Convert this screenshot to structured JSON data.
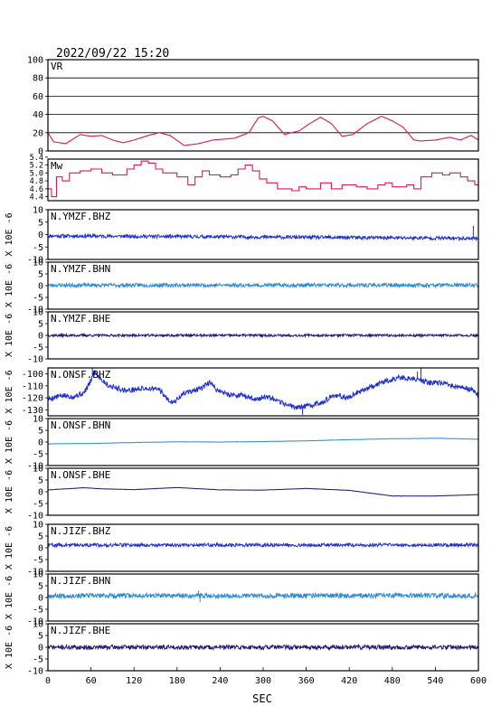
{
  "header": {
    "timestamp": "2022/09/22 15:20"
  },
  "colors": {
    "vr": "#d81b4a",
    "mw": "#d81b4a",
    "bhz": "#1f2fd0",
    "bhn": "#2e8bd8",
    "bhe": "#1a1a70",
    "grid": "#000000"
  },
  "chart_data": {
    "type": "line",
    "x_label": "SEC",
    "x_range": [
      0,
      600
    ],
    "x_ticks": [
      0,
      60,
      120,
      180,
      240,
      300,
      360,
      420,
      480,
      540,
      600
    ],
    "panels": [
      {
        "key": "vr",
        "title": "VR",
        "ylabel": "",
        "ylim": [
          0,
          100
        ],
        "ticks": [
          0,
          20,
          40,
          60,
          80,
          100
        ],
        "grid": true,
        "color_key": "vr",
        "mode": "line",
        "points": [
          [
            0,
            20
          ],
          [
            8,
            10
          ],
          [
            25,
            8
          ],
          [
            45,
            18
          ],
          [
            60,
            16
          ],
          [
            75,
            17
          ],
          [
            90,
            12
          ],
          [
            105,
            9
          ],
          [
            120,
            12
          ],
          [
            140,
            17
          ],
          [
            155,
            20
          ],
          [
            170,
            17
          ],
          [
            190,
            6
          ],
          [
            210,
            8
          ],
          [
            230,
            12
          ],
          [
            260,
            14
          ],
          [
            280,
            20
          ],
          [
            293,
            36
          ],
          [
            300,
            38
          ],
          [
            313,
            33
          ],
          [
            330,
            18
          ],
          [
            350,
            22
          ],
          [
            365,
            30
          ],
          [
            380,
            37
          ],
          [
            395,
            30
          ],
          [
            410,
            16
          ],
          [
            425,
            18
          ],
          [
            445,
            30
          ],
          [
            465,
            38
          ],
          [
            480,
            33
          ],
          [
            495,
            26
          ],
          [
            510,
            12
          ],
          [
            520,
            11
          ],
          [
            540,
            12
          ],
          [
            560,
            15
          ],
          [
            575,
            12
          ],
          [
            590,
            17
          ],
          [
            600,
            12
          ]
        ]
      },
      {
        "key": "mw",
        "title": "Mw",
        "ylabel": "",
        "ylim": [
          4.3,
          5.35
        ],
        "ticks": [
          4.4,
          4.6,
          4.8,
          5.0,
          5.2,
          5.4
        ],
        "tick_labels": [
          "4.4",
          "4.6",
          "4.8",
          "5.0",
          "5.2",
          "5.4"
        ],
        "grid": false,
        "color_key": "mw",
        "mode": "step",
        "points": [
          [
            0,
            4.6
          ],
          [
            5,
            4.4
          ],
          [
            12,
            4.9
          ],
          [
            20,
            4.8
          ],
          [
            30,
            5.0
          ],
          [
            45,
            5.05
          ],
          [
            60,
            5.1
          ],
          [
            75,
            5.0
          ],
          [
            90,
            4.95
          ],
          [
            110,
            5.1
          ],
          [
            120,
            5.2
          ],
          [
            130,
            5.3
          ],
          [
            140,
            5.25
          ],
          [
            150,
            5.1
          ],
          [
            160,
            5.0
          ],
          [
            180,
            4.9
          ],
          [
            195,
            4.7
          ],
          [
            205,
            4.9
          ],
          [
            215,
            5.05
          ],
          [
            225,
            4.95
          ],
          [
            240,
            4.9
          ],
          [
            255,
            4.95
          ],
          [
            265,
            5.1
          ],
          [
            275,
            5.2
          ],
          [
            285,
            5.05
          ],
          [
            295,
            4.85
          ],
          [
            305,
            4.75
          ],
          [
            320,
            4.6
          ],
          [
            340,
            4.55
          ],
          [
            350,
            4.65
          ],
          [
            360,
            4.6
          ],
          [
            380,
            4.75
          ],
          [
            395,
            4.6
          ],
          [
            410,
            4.7
          ],
          [
            430,
            4.65
          ],
          [
            445,
            4.6
          ],
          [
            460,
            4.7
          ],
          [
            470,
            4.75
          ],
          [
            480,
            4.65
          ],
          [
            500,
            4.7
          ],
          [
            510,
            4.6
          ],
          [
            520,
            4.9
          ],
          [
            535,
            5.0
          ],
          [
            550,
            4.95
          ],
          [
            560,
            5.0
          ],
          [
            575,
            4.9
          ],
          [
            585,
            4.8
          ],
          [
            595,
            4.7
          ],
          [
            600,
            4.65
          ]
        ]
      },
      {
        "key": "ymzf_bhz",
        "title": "N.YMZF.BHZ",
        "ylabel": "X 10E -6",
        "ylim": [
          -10,
          10
        ],
        "ticks": [
          -10,
          -5,
          0,
          5,
          10
        ],
        "color_key": "bhz",
        "mode": "noise",
        "base": [
          [
            0,
            -0.5
          ],
          [
            600,
            -1.5
          ]
        ],
        "amp": 0.7,
        "seed": 11,
        "spikes": [
          [
            593,
            3.5
          ],
          [
            597,
            -2.5
          ]
        ]
      },
      {
        "key": "ymzf_bhn",
        "title": "N.YMZF.BHN",
        "ylabel": "X 10E -6",
        "ylim": [
          -10,
          10
        ],
        "ticks": [
          -10,
          -5,
          0,
          5,
          10
        ],
        "color_key": "bhn",
        "mode": "noise",
        "base": [
          [
            0,
            0.2
          ],
          [
            600,
            0.2
          ]
        ],
        "amp": 0.8,
        "seed": 23,
        "spikes": []
      },
      {
        "key": "ymzf_bhe",
        "title": "N.YMZF.BHE",
        "ylabel": "X 10E -6",
        "ylim": [
          -10,
          10
        ],
        "ticks": [
          -10,
          -5,
          0,
          5,
          10
        ],
        "color_key": "bhe",
        "mode": "noise",
        "base": [
          [
            0,
            0
          ],
          [
            600,
            0
          ]
        ],
        "amp": 0.5,
        "seed": 37,
        "spikes": []
      },
      {
        "key": "onsf_bhz",
        "title": "N.ONSF.BHZ",
        "ylabel": "X 10E -6",
        "ylim": [
          -135,
          -95
        ],
        "ticks": [
          -130,
          -120,
          -110,
          -100
        ],
        "color_key": "bhz",
        "mode": "noise",
        "amp": 2.2,
        "seed": 5,
        "base": [
          [
            0,
            -121
          ],
          [
            20,
            -118
          ],
          [
            35,
            -119
          ],
          [
            50,
            -116
          ],
          [
            58,
            -108
          ],
          [
            65,
            -98
          ],
          [
            75,
            -105
          ],
          [
            85,
            -110
          ],
          [
            110,
            -114
          ],
          [
            135,
            -112
          ],
          [
            155,
            -113
          ],
          [
            165,
            -120
          ],
          [
            175,
            -124
          ],
          [
            190,
            -116
          ],
          [
            215,
            -112
          ],
          [
            225,
            -107
          ],
          [
            235,
            -113
          ],
          [
            250,
            -117
          ],
          [
            270,
            -118
          ],
          [
            290,
            -121
          ],
          [
            305,
            -119
          ],
          [
            320,
            -123
          ],
          [
            345,
            -128
          ],
          [
            360,
            -127
          ],
          [
            380,
            -124
          ],
          [
            400,
            -118
          ],
          [
            420,
            -120
          ],
          [
            432,
            -115
          ],
          [
            445,
            -112
          ],
          [
            465,
            -107
          ],
          [
            490,
            -103
          ],
          [
            510,
            -104
          ],
          [
            530,
            -107
          ],
          [
            550,
            -108
          ],
          [
            570,
            -111
          ],
          [
            590,
            -113
          ],
          [
            600,
            -118
          ]
        ],
        "spikes": [
          [
            62,
            -95
          ],
          [
            520,
            -94
          ],
          [
            515,
            -98
          ],
          [
            355,
            -134
          ]
        ]
      },
      {
        "key": "onsf_bhn",
        "title": "N.ONSF.BHN",
        "ylabel": "X 10E -6",
        "ylim": [
          -10,
          10
        ],
        "ticks": [
          -10,
          -5,
          0,
          5,
          10
        ],
        "color_key": "bhn",
        "mode": "noise",
        "amp": 0.06,
        "seed": 41,
        "spikes": [],
        "base": [
          [
            0,
            -0.8
          ],
          [
            60,
            -0.6
          ],
          [
            120,
            -0.2
          ],
          [
            180,
            0.1
          ],
          [
            240,
            0.0
          ],
          [
            300,
            0.2
          ],
          [
            360,
            0.5
          ],
          [
            420,
            1.0
          ],
          [
            480,
            1.4
          ],
          [
            540,
            1.6
          ],
          [
            600,
            1.2
          ]
        ]
      },
      {
        "key": "onsf_bhe",
        "title": "N.ONSF.BHE",
        "ylabel": "X 10E -6",
        "ylim": [
          -10,
          10
        ],
        "ticks": [
          -10,
          -5,
          0,
          5,
          10
        ],
        "color_key": "bhe",
        "mode": "noise",
        "amp": 0.06,
        "seed": 43,
        "spikes": [],
        "base": [
          [
            0,
            0.8
          ],
          [
            50,
            1.7
          ],
          [
            80,
            1.2
          ],
          [
            120,
            0.9
          ],
          [
            180,
            1.8
          ],
          [
            240,
            0.8
          ],
          [
            300,
            0.7
          ],
          [
            360,
            1.4
          ],
          [
            420,
            0.6
          ],
          [
            455,
            -0.8
          ],
          [
            480,
            -1.8
          ],
          [
            540,
            -1.8
          ],
          [
            600,
            -1.2
          ]
        ]
      },
      {
        "key": "jizf_bhz",
        "title": "N.JIZF.BHZ",
        "ylabel": "X 10E -6",
        "ylim": [
          -10,
          10
        ],
        "ticks": [
          -10,
          -5,
          0,
          5,
          10
        ],
        "color_key": "bhz",
        "mode": "noise",
        "base": [
          [
            0,
            1.2
          ],
          [
            600,
            1.2
          ]
        ],
        "amp": 0.7,
        "seed": 59,
        "spikes": []
      },
      {
        "key": "jizf_bhn",
        "title": "N.JIZF.BHN",
        "ylabel": "X 10E -6",
        "ylim": [
          -10,
          10
        ],
        "ticks": [
          -10,
          -5,
          0,
          5,
          10
        ],
        "color_key": "bhn",
        "mode": "noise",
        "base": [
          [
            0,
            0.8
          ],
          [
            600,
            0.8
          ]
        ],
        "amp": 1.0,
        "seed": 67,
        "spikes": [
          [
            210,
            3.0
          ],
          [
            212,
            -2.0
          ]
        ]
      },
      {
        "key": "jizf_bhe",
        "title": "N.JIZF.BHE",
        "ylabel": "X 10E -6",
        "ylim": [
          -10,
          10
        ],
        "ticks": [
          -10,
          -5,
          0,
          5,
          10
        ],
        "color_key": "bhe",
        "mode": "noise",
        "base": [
          [
            0,
            0
          ],
          [
            600,
            0
          ]
        ],
        "amp": 0.9,
        "seed": 71,
        "spikes": []
      }
    ]
  }
}
